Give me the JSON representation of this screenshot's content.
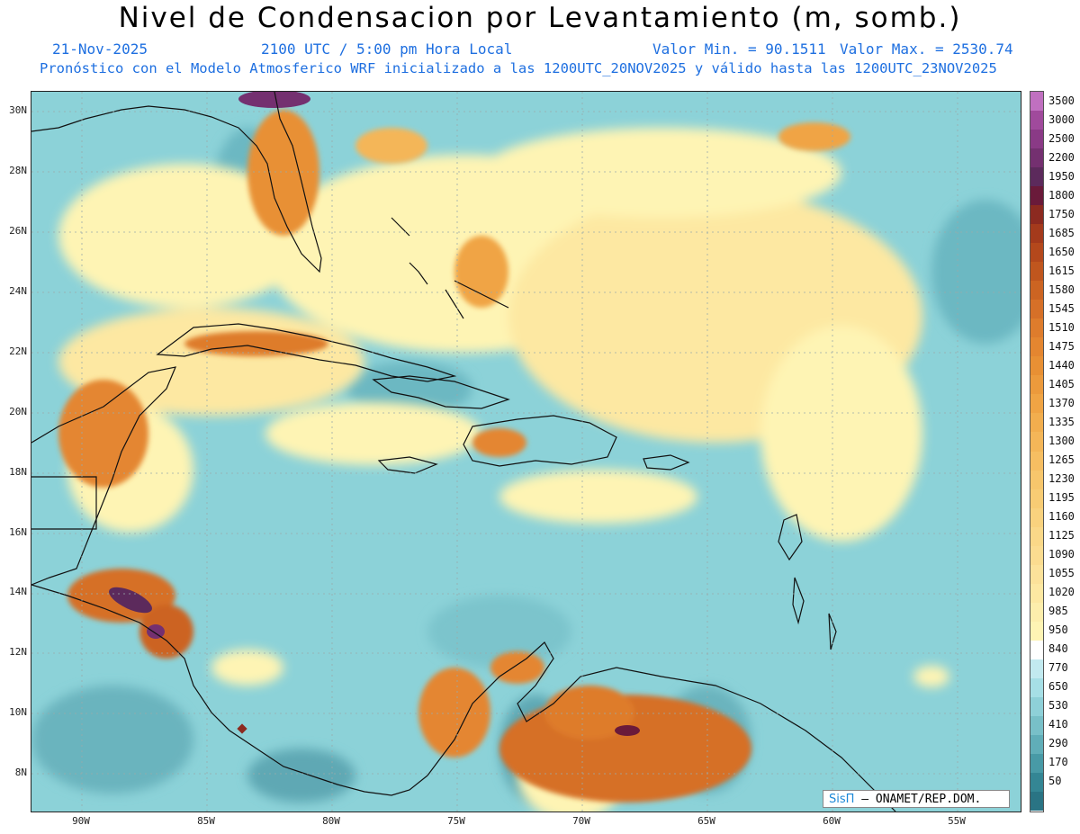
{
  "header": {
    "title": "Nivel de Condensacion por Levantamiento (m, somb.)",
    "date": "21-Nov-2025",
    "time": "2100 UTC / 5:00 pm Hora Local",
    "min_label": "Valor Min. = 90.1511",
    "max_label": "Valor Max. = 2530.74",
    "model_line": "Pronóstico con el Modelo Atmosferico WRF inicializado a las 1200UTC_20NOV2025 y válido hasta las  1200UTC_23NOV2025",
    "text_color": "#1e6fe0"
  },
  "map": {
    "lat_ticks": [
      "30N",
      "28N",
      "26N",
      "24N",
      "22N",
      "20N",
      "18N",
      "16N",
      "14N",
      "12N",
      "10N",
      "8N"
    ],
    "lon_ticks": [
      "90W",
      "85W",
      "80W",
      "75W",
      "70W",
      "65W",
      "60W",
      "55W"
    ],
    "lon_range": [
      -92,
      -52.5
    ],
    "lat_range": [
      6.8,
      30.6
    ],
    "background_color": "#8cd2d8"
  },
  "colorbar": {
    "levels": [
      {
        "label": "3500",
        "color": "#c070c0"
      },
      {
        "label": "3000",
        "color": "#a04a9c"
      },
      {
        "label": "2500",
        "color": "#8a3a86"
      },
      {
        "label": "2200",
        "color": "#743070"
      },
      {
        "label": "1950",
        "color": "#5c2a5c"
      },
      {
        "label": "1800",
        "color": "#6a1a3a"
      },
      {
        "label": "1750",
        "color": "#8c2a20"
      },
      {
        "label": "1685",
        "color": "#a43a1c"
      },
      {
        "label": "1650",
        "color": "#b4481c"
      },
      {
        "label": "1615",
        "color": "#c0561e"
      },
      {
        "label": "1580",
        "color": "#cc6422"
      },
      {
        "label": "1545",
        "color": "#d67028"
      },
      {
        "label": "1510",
        "color": "#de7c2c"
      },
      {
        "label": "1475",
        "color": "#e48630"
      },
      {
        "label": "1440",
        "color": "#e89034"
      },
      {
        "label": "1405",
        "color": "#ec9a3c"
      },
      {
        "label": "1370",
        "color": "#f0a444"
      },
      {
        "label": "1335",
        "color": "#f2ae4e"
      },
      {
        "label": "1300",
        "color": "#f4b658"
      },
      {
        "label": "1265",
        "color": "#f6be62"
      },
      {
        "label": "1230",
        "color": "#f7c66c"
      },
      {
        "label": "1195",
        "color": "#f8cc74"
      },
      {
        "label": "1160",
        "color": "#f9d27e"
      },
      {
        "label": "1125",
        "color": "#fad888"
      },
      {
        "label": "1090",
        "color": "#fbdc90"
      },
      {
        "label": "1055",
        "color": "#fce29a"
      },
      {
        "label": "1020",
        "color": "#fde8a2"
      },
      {
        "label": "985",
        "color": "#fdeeac"
      },
      {
        "label": "950",
        "color": "#fef4b4"
      },
      {
        "label": "840",
        "color": "#ffffff"
      },
      {
        "label": "770",
        "color": "#c2eaf0"
      },
      {
        "label": "650",
        "color": "#a6dfe6"
      },
      {
        "label": "530",
        "color": "#8ed0d8"
      },
      {
        "label": "410",
        "color": "#78c0c8"
      },
      {
        "label": "290",
        "color": "#60aeb8"
      },
      {
        "label": "170",
        "color": "#489aa6"
      },
      {
        "label": "50",
        "color": "#348694"
      },
      {
        "label": "",
        "color": "#2a7484"
      }
    ]
  },
  "credit": {
    "brand": "SisΠ",
    "text": " – ONAMET/REP.DOM."
  }
}
